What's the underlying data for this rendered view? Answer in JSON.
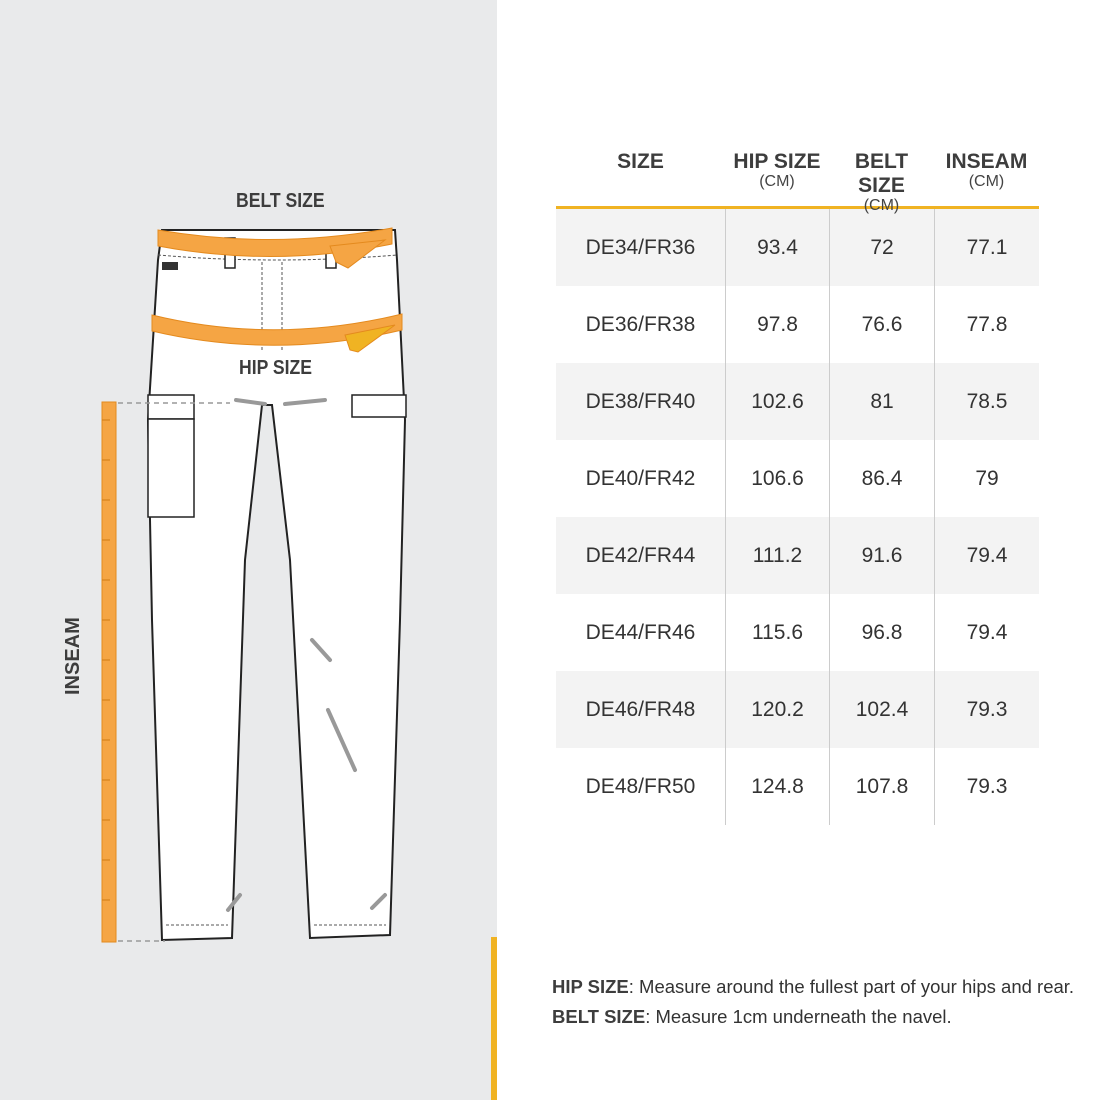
{
  "colors": {
    "accent": "#f0b323",
    "tape": "#f5a544",
    "panel": "#e9eaeb"
  },
  "diagram": {
    "belt_label": "BELT SIZE",
    "hip_label": "HIP SIZE",
    "inseam_label": "INSEAM"
  },
  "table": {
    "headers": [
      {
        "label": "SIZE",
        "unit": ""
      },
      {
        "label": "HIP SIZE",
        "unit": "(CM)"
      },
      {
        "label": "BELT SIZE",
        "unit": "(CM)"
      },
      {
        "label": "INSEAM",
        "unit": "(CM)"
      }
    ],
    "rows": [
      [
        "DE34/FR36",
        "93.4",
        "72",
        "77.1"
      ],
      [
        "DE36/FR38",
        "97.8",
        "76.6",
        "77.8"
      ],
      [
        "DE38/FR40",
        "102.6",
        "81",
        "78.5"
      ],
      [
        "DE40/FR42",
        "106.6",
        "86.4",
        "79"
      ],
      [
        "DE42/FR44",
        "111.2",
        "91.6",
        "79.4"
      ],
      [
        "DE44/FR46",
        "115.6",
        "96.8",
        "79.4"
      ],
      [
        "DE46/FR48",
        "120.2",
        "102.4",
        "79.3"
      ],
      [
        "DE48/FR50",
        "124.8",
        "107.8",
        "79.3"
      ]
    ]
  },
  "notes": [
    {
      "term": "HIP SIZE",
      "text": ": Measure around the fullest part of your hips and rear."
    },
    {
      "term": "BELT SIZE",
      "text": ": Measure 1cm underneath the navel."
    }
  ]
}
